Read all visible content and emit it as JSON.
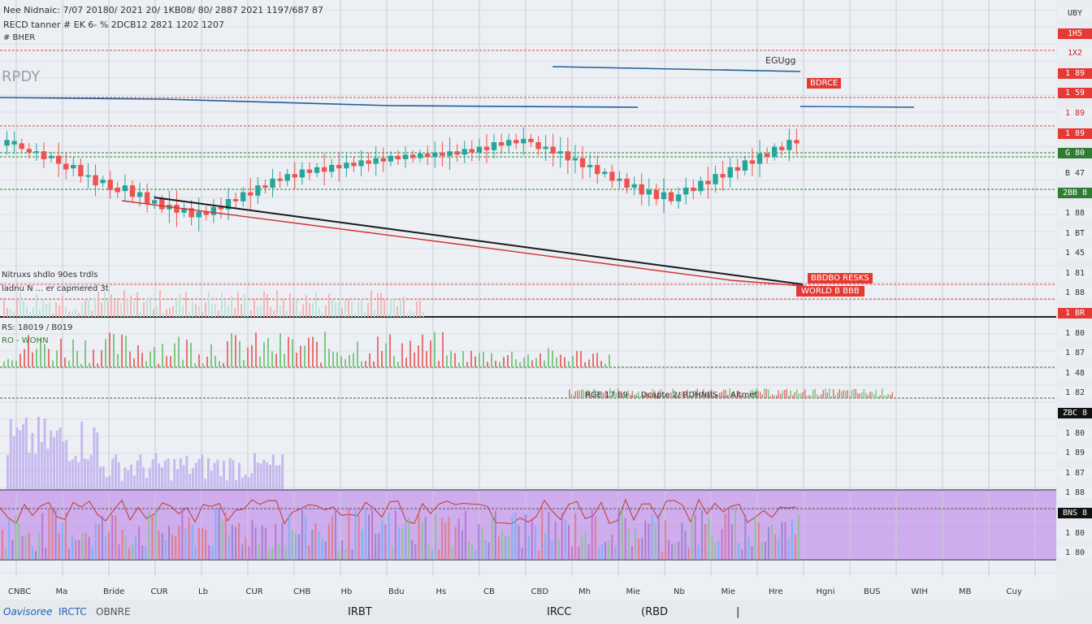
{
  "header": {
    "line1": "Nee Nidnaic: 7/07 20180/ 2021 20/ 1KB08/ 80/ 2887 2021 1197/687 87",
    "line2": "RECD tanner # EK 6- % 2DCB12 2821 1202 1207",
    "line3": "# BHER"
  },
  "chart_labels": {
    "top_left_mark": "RPDY",
    "volume_caption1": "Nitruxs shdlo 90es trdls",
    "volume_caption2": "ladnu N ... er capmered 3t",
    "indicator_caption1": "RS: 18019 / B019",
    "indicator_caption2": "RO - WOHN",
    "indicator_row_text": "RGE 17 89 ... Dcapte 2/ RDHNBS ... Altmet",
    "marker_label": "EGUgg",
    "badge_top": "BDRCE",
    "badge_bottom1": "BBDBO RESKS",
    "badge_bottom2": "WORLD B BBB"
  },
  "price_axis": [
    {
      "text": "UBY",
      "bg": "#eceff3",
      "color": "#333"
    },
    {
      "text": "1H5",
      "bg": "#e53935",
      "color": "#fff"
    },
    {
      "text": "1X2",
      "bg": "#eceff3",
      "color": "#c62828"
    },
    {
      "text": "1 89",
      "bg": "#e53935",
      "color": "#fff"
    },
    {
      "text": "1 59",
      "bg": "#e53935",
      "color": "#fff"
    },
    {
      "text": "1 89",
      "bg": "#eceff3",
      "color": "#c62828"
    },
    {
      "text": "1 89",
      "bg": "#e53935",
      "color": "#fff"
    },
    {
      "text": "G 80",
      "bg": "#2e7d32",
      "color": "#fff"
    },
    {
      "text": "B 47",
      "bg": "#eceff3",
      "color": "#333"
    },
    {
      "text": "2BB 8",
      "bg": "#2e7d32",
      "color": "#fff"
    },
    {
      "text": "1 88",
      "bg": "#eceff3",
      "color": "#333"
    },
    {
      "text": "1 BT",
      "bg": "#eceff3",
      "color": "#333"
    },
    {
      "text": "1 45",
      "bg": "#eceff3",
      "color": "#333"
    },
    {
      "text": "1 81",
      "bg": "#eceff3",
      "color": "#333"
    },
    {
      "text": "1 88",
      "bg": "#eceff3",
      "color": "#333"
    },
    {
      "text": "1 BR",
      "bg": "#e53935",
      "color": "#fff"
    },
    {
      "text": "1 80",
      "bg": "#eceff3",
      "color": "#333"
    },
    {
      "text": "1 87",
      "bg": "#eceff3",
      "color": "#333"
    },
    {
      "text": "1 48",
      "bg": "#eceff3",
      "color": "#333"
    },
    {
      "text": "1 82",
      "bg": "#eceff3",
      "color": "#333"
    },
    {
      "text": "ZBC 8",
      "bg": "#111",
      "color": "#fff"
    },
    {
      "text": "1 80",
      "bg": "#eceff3",
      "color": "#333"
    },
    {
      "text": "1 89",
      "bg": "#eceff3",
      "color": "#333"
    },
    {
      "text": "1 87",
      "bg": "#eceff3",
      "color": "#333"
    },
    {
      "text": "1 88",
      "bg": "#eceff3",
      "color": "#333"
    },
    {
      "text": "BNS 8",
      "bg": "#111",
      "color": "#fff"
    },
    {
      "text": "1 80",
      "bg": "#eceff3",
      "color": "#333"
    },
    {
      "text": "1 80",
      "bg": "#eceff3",
      "color": "#333"
    }
  ],
  "time_axis": [
    "CNBC",
    "Ma",
    "Bride",
    "CUR",
    "Lb",
    "CUR",
    "CHB",
    "Hb",
    "Bdu",
    "Hs",
    "CB",
    "CBD",
    "Mh",
    "Mie",
    "Nb",
    "Mie",
    "Hre",
    "Hgni",
    "BUS",
    "WIH",
    "MB",
    "Cuy"
  ],
  "bottom_bar": {
    "brand": "Oavisoree",
    "symbol": "IRCTC",
    "suffix": "OBNRE",
    "item1": "IRBT",
    "item2": "IRCC",
    "item3": "(RBD",
    "item4": "|"
  },
  "colors": {
    "up": "#26a69a",
    "down": "#ef5350",
    "grid": "#c9cdd4",
    "ma_blue": "#1f5f9a",
    "trend_black": "#1a1a1a",
    "trend_red": "#d32f2f",
    "rsi_band": "#c9a0ec"
  },
  "chart_data": {
    "type": "candlestick",
    "price_series": [
      [
        -0.15,
        0.1
      ],
      [
        -0.1,
        0.05
      ],
      [
        -0.05,
        -0.3
      ],
      [
        -0.3,
        -0.45
      ],
      [
        -0.45,
        -0.4
      ],
      [
        -0.4,
        -0.75
      ],
      [
        -0.7,
        -0.6
      ],
      [
        -0.6,
        -0.95
      ],
      [
        -0.95,
        -1.2
      ],
      [
        -1.15,
        -1.0
      ],
      [
        -1.0,
        -1.5
      ],
      [
        -1.5,
        -1.45
      ],
      [
        -1.45,
        -1.9
      ],
      [
        -1.8,
        -1.65
      ],
      [
        -1.65,
        -2.1
      ],
      [
        -2.0,
        -2.2
      ],
      [
        -2.15,
        -1.9
      ],
      [
        -1.9,
        -2.4
      ],
      [
        -2.4,
        -2.2
      ],
      [
        -2.2,
        -2.7
      ],
      [
        -2.7,
        -2.55
      ],
      [
        -2.5,
        -2.95
      ],
      [
        -2.95,
        -2.75
      ],
      [
        -2.75,
        -3.1
      ],
      [
        -3.1,
        -2.9
      ],
      [
        -2.9,
        -3.3
      ],
      [
        -3.3,
        -3.05
      ],
      [
        -3.05,
        -3.2
      ],
      [
        -3.2,
        -2.85
      ],
      [
        -2.85,
        -2.95
      ],
      [
        -2.95,
        -2.5
      ],
      [
        -2.5,
        -2.6
      ],
      [
        -2.6,
        -2.2
      ],
      [
        -2.2,
        -2.35
      ],
      [
        -2.35,
        -1.9
      ],
      [
        -1.9,
        -2.0
      ],
      [
        -2.0,
        -1.6
      ],
      [
        -1.6,
        -1.7
      ],
      [
        -1.7,
        -1.4
      ],
      [
        -1.4,
        -1.55
      ],
      [
        -1.55,
        -1.2
      ],
      [
        -1.2,
        -1.35
      ],
      [
        -1.35,
        -1.1
      ],
      [
        -1.1,
        -1.3
      ],
      [
        -1.3,
        -1.0
      ],
      [
        -1.0,
        -1.15
      ],
      [
        -1.15,
        -0.9
      ],
      [
        -0.9,
        -1.05
      ],
      [
        -1.05,
        -0.8
      ],
      [
        -0.8,
        -0.95
      ],
      [
        -0.95,
        -0.7
      ],
      [
        -0.7,
        -0.85
      ],
      [
        -0.85,
        -0.6
      ],
      [
        -0.6,
        -0.75
      ],
      [
        -0.75,
        -0.55
      ],
      [
        -0.55,
        -0.7
      ],
      [
        -0.7,
        -0.5
      ],
      [
        -0.5,
        -0.65
      ],
      [
        -0.65,
        -0.45
      ],
      [
        -0.45,
        -0.6
      ],
      [
        -0.6,
        -0.4
      ],
      [
        -0.4,
        -0.55
      ],
      [
        -0.55,
        -0.3
      ],
      [
        -0.3,
        -0.45
      ],
      [
        -0.45,
        -0.2
      ],
      [
        -0.2,
        -0.35
      ],
      [
        -0.35,
        0.0
      ],
      [
        0.0,
        -0.15
      ],
      [
        -0.15,
        0.1
      ],
      [
        0.1,
        -0.05
      ],
      [
        -0.05,
        0.15
      ],
      [
        0.15,
        0.0
      ],
      [
        0.0,
        -0.3
      ],
      [
        -0.3,
        -0.2
      ],
      [
        -0.2,
        -0.5
      ],
      [
        -0.5,
        -0.4
      ],
      [
        -0.4,
        -0.8
      ],
      [
        -0.8,
        -0.7
      ],
      [
        -0.7,
        -1.1
      ],
      [
        -1.1,
        -1.0
      ],
      [
        -1.0,
        -1.4
      ],
      [
        -1.4,
        -1.3
      ],
      [
        -1.3,
        -1.7
      ],
      [
        -1.7,
        -1.6
      ],
      [
        -1.6,
        -2.0
      ],
      [
        -2.0,
        -1.85
      ],
      [
        -1.85,
        -2.3
      ],
      [
        -2.3,
        -2.1
      ],
      [
        -2.1,
        -2.5
      ],
      [
        -2.5,
        -2.2
      ],
      [
        -2.2,
        -2.6
      ],
      [
        -2.6,
        -2.3
      ],
      [
        -2.3,
        -2.0
      ],
      [
        -2.0,
        -2.15
      ],
      [
        -2.15,
        -1.7
      ],
      [
        -1.7,
        -1.85
      ],
      [
        -1.85,
        -1.4
      ],
      [
        -1.4,
        -1.55
      ],
      [
        -1.55,
        -1.1
      ],
      [
        -1.1,
        -1.25
      ],
      [
        -1.25,
        -0.8
      ],
      [
        -0.8,
        -0.95
      ],
      [
        -0.95,
        -0.5
      ],
      [
        -0.5,
        -0.65
      ],
      [
        -0.65,
        -0.2
      ],
      [
        -0.2,
        -0.35
      ],
      [
        -0.35,
        0.1
      ],
      [
        0.1,
        -0.05
      ]
    ]
  }
}
